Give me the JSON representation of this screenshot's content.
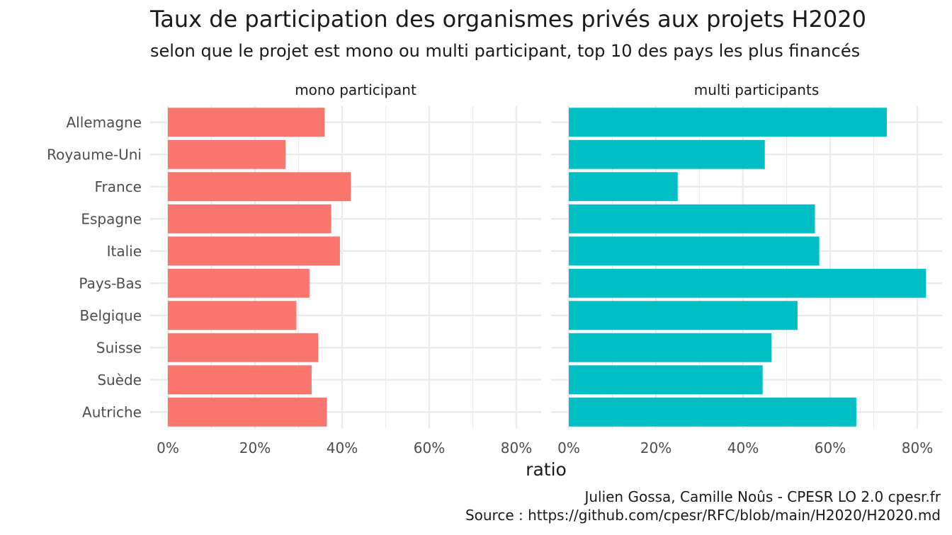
{
  "chart_data": {
    "type": "bar",
    "orientation": "horizontal",
    "title": "Taux de participation des organismes privés aux projets H2020",
    "subtitle": "selon que le projet est mono ou multi participant, top 10 des pays les plus financés",
    "xlabel": "ratio",
    "ylabel": "",
    "categories": [
      "Allemagne",
      "Royaume-Uni",
      "France",
      "Espagne",
      "Italie",
      "Pays-Bas",
      "Belgique",
      "Suisse",
      "Suède",
      "Autriche"
    ],
    "xlim": [
      0,
      0.86
    ],
    "x_ticks": [
      0,
      0.2,
      0.4,
      0.6,
      0.8
    ],
    "x_tick_labels": [
      "0%",
      "20%",
      "40%",
      "60%",
      "80%"
    ],
    "grid": true,
    "facets": [
      {
        "label": "mono participant",
        "color": "#F8766D",
        "values": [
          0.36,
          0.27,
          0.42,
          0.375,
          0.395,
          0.325,
          0.295,
          0.345,
          0.33,
          0.365
        ]
      },
      {
        "label": "multi participants",
        "color": "#00BFC4",
        "values": [
          0.73,
          0.45,
          0.25,
          0.565,
          0.575,
          0.82,
          0.525,
          0.465,
          0.445,
          0.66
        ]
      }
    ]
  },
  "caption": {
    "line1": "Julien Gossa, Camille Noûs - CPESR LO 2.0 cpesr.fr",
    "line2": "Source : https://github.com/cpesr/RFC/blob/main/H2020/H2020.md"
  },
  "colors": {
    "grid": "#ebebeb",
    "tick_text": "#4d4d4d"
  }
}
